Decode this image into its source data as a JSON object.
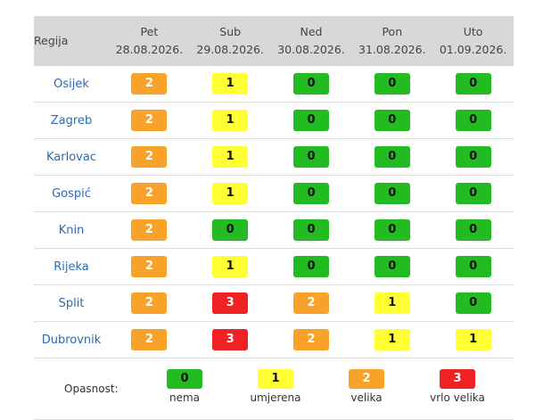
{
  "table": {
    "region_header": "Regija",
    "days": [
      {
        "weekday": "Pet",
        "date": "28.08.2026."
      },
      {
        "weekday": "Sub",
        "date": "29.08.2026."
      },
      {
        "weekday": "Ned",
        "date": "30.08.2026."
      },
      {
        "weekday": "Pon",
        "date": "31.08.2026."
      },
      {
        "weekday": "Uto",
        "date": "01.09.2026."
      }
    ],
    "rows": [
      {
        "region": "Osijek",
        "levels": [
          "2",
          "1",
          "0",
          "0",
          "0"
        ]
      },
      {
        "region": "Zagreb",
        "levels": [
          "2",
          "1",
          "0",
          "0",
          "0"
        ]
      },
      {
        "region": "Karlovac",
        "levels": [
          "2",
          "1",
          "0",
          "0",
          "0"
        ]
      },
      {
        "region": "Gospić",
        "levels": [
          "2",
          "1",
          "0",
          "0",
          "0"
        ]
      },
      {
        "region": "Knin",
        "levels": [
          "2",
          "0",
          "0",
          "0",
          "0"
        ]
      },
      {
        "region": "Rijeka",
        "levels": [
          "2",
          "1",
          "0",
          "0",
          "0"
        ]
      },
      {
        "region": "Split",
        "levels": [
          "2",
          "3",
          "2",
          "1",
          "0"
        ]
      },
      {
        "region": "Dubrovnik",
        "levels": [
          "2",
          "3",
          "2",
          "1",
          "1"
        ]
      }
    ]
  },
  "legend": {
    "title": "Opasnost:",
    "items": [
      {
        "value": "0",
        "label": "nema"
      },
      {
        "value": "1",
        "label": "umjerena"
      },
      {
        "value": "2",
        "label": "velika"
      },
      {
        "value": "3",
        "label": "vrlo velika"
      }
    ]
  },
  "colors": {
    "level_0": "#22bb22",
    "level_1": "#ffff33",
    "level_2": "#f8a22a",
    "level_3": "#ee2222",
    "header_bg": "#d8d8d8",
    "region_link": "#2a6bb0"
  }
}
